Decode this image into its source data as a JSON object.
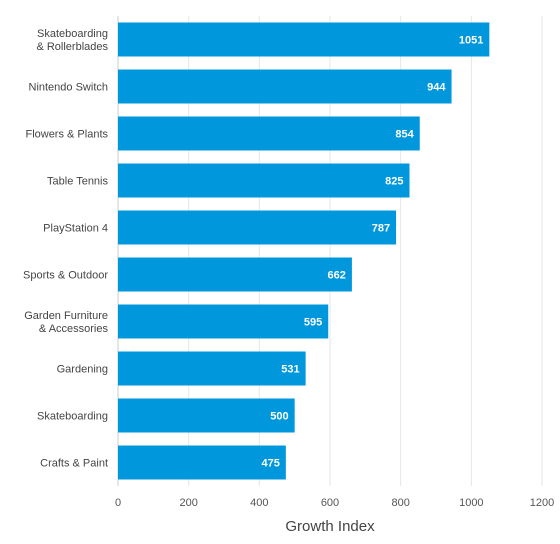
{
  "chart_data": {
    "type": "bar",
    "orientation": "horizontal",
    "categories": [
      [
        "Skateboarding",
        "& Rollerblades"
      ],
      [
        "Nintendo Switch"
      ],
      [
        "Flowers & Plants"
      ],
      [
        "Table Tennis"
      ],
      [
        "PlayStation 4"
      ],
      [
        "Sports & Outdoor"
      ],
      [
        "Garden Furniture",
        "& Accessories"
      ],
      [
        "Gardening"
      ],
      [
        "Skateboarding"
      ],
      [
        "Crafts & Paint"
      ]
    ],
    "values": [
      1051,
      944,
      854,
      825,
      787,
      662,
      595,
      531,
      500,
      475
    ],
    "xlabel": "Growth Index",
    "xlim": [
      0,
      1200
    ],
    "xticks": [
      0,
      200,
      400,
      600,
      800,
      1000,
      1200
    ],
    "grid": "vertical",
    "data_labels": "inside-end",
    "bar_color": "#0097dc"
  }
}
